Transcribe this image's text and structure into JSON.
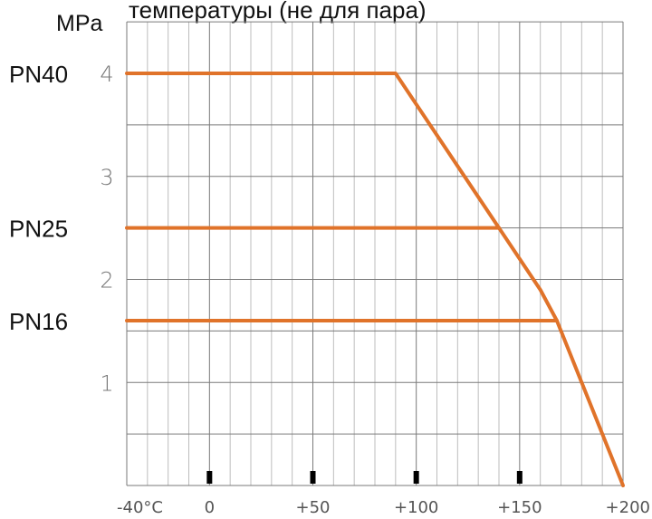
{
  "chart_data": {
    "type": "line",
    "title": "температуры (не для пара)",
    "ylabel": "MPa",
    "xlim": [
      -40,
      200
    ],
    "ylim": [
      0,
      4
    ],
    "x_ticks": [
      {
        "value": -40,
        "label": "-40°C"
      },
      {
        "value": 0,
        "label": "0"
      },
      {
        "value": 50,
        "label": "+50"
      },
      {
        "value": 100,
        "label": "+100"
      },
      {
        "value": 150,
        "label": "+150"
      },
      {
        "value": 200,
        "label": "+200"
      }
    ],
    "x_tick_markers": [
      0,
      50,
      100,
      150
    ],
    "y_ticks": [
      {
        "value": 1,
        "label": "1"
      },
      {
        "value": 2,
        "label": "2"
      },
      {
        "value": 3,
        "label": "3"
      },
      {
        "value": 4,
        "label": "4"
      }
    ],
    "grid": true,
    "series_color": "#E0732A",
    "series": [
      {
        "name": "PN40",
        "label_y": 4.0,
        "points": [
          [
            -40,
            4.0
          ],
          [
            90,
            4.0
          ],
          [
            140,
            2.5
          ],
          [
            160,
            1.9
          ],
          [
            168,
            1.6
          ],
          [
            200,
            0.0
          ]
        ]
      },
      {
        "name": "PN25",
        "label_y": 2.5,
        "points": [
          [
            -40,
            2.5
          ],
          [
            140,
            2.5
          ]
        ]
      },
      {
        "name": "PN16",
        "label_y": 1.6,
        "points": [
          [
            -40,
            1.6
          ],
          [
            168,
            1.6
          ]
        ]
      }
    ]
  }
}
